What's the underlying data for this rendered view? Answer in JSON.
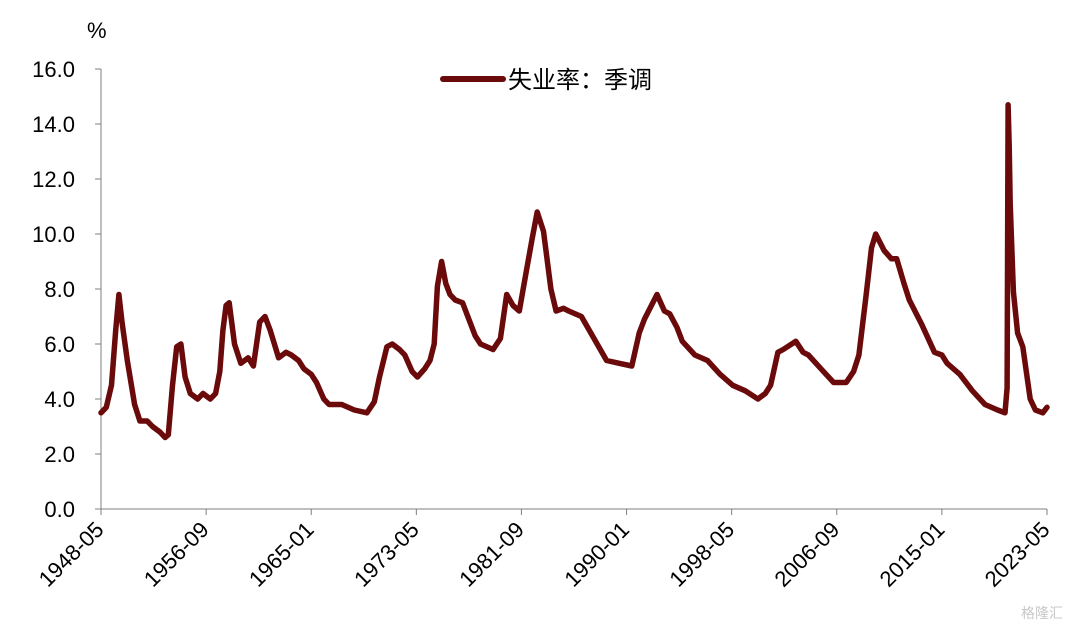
{
  "chart_data": {
    "type": "line",
    "title": "",
    "ylabel": "%",
    "xlabel": "",
    "ylim": [
      0,
      16
    ],
    "yticks": [
      "0.0",
      "2.0",
      "4.0",
      "6.0",
      "8.0",
      "10.0",
      "12.0",
      "14.0",
      "16.0"
    ],
    "xticks": [
      "1948-05",
      "1956-09",
      "1965-01",
      "1973-05",
      "1981-09",
      "1990-01",
      "1998-05",
      "2006-09",
      "2015-01",
      "2023-05"
    ],
    "legend": {
      "position": "top-center"
    },
    "series": [
      {
        "name": "失业率：季调",
        "color": "#6b0a0a",
        "x": [
          "1948-05",
          "1948-10",
          "1949-03",
          "1949-07",
          "1949-10",
          "1950-01",
          "1950-06",
          "1951-01",
          "1951-06",
          "1952-01",
          "1952-06",
          "1953-01",
          "1953-06",
          "1953-09",
          "1954-01",
          "1954-05",
          "1954-09",
          "1955-01",
          "1955-06",
          "1956-01",
          "1956-06",
          "1957-01",
          "1957-06",
          "1957-10",
          "1958-01",
          "1958-04",
          "1958-07",
          "1958-12",
          "1959-06",
          "1960-01",
          "1960-06",
          "1960-12",
          "1961-05",
          "1961-10",
          "1962-06",
          "1963-01",
          "1963-06",
          "1964-01",
          "1964-06",
          "1965-01",
          "1965-06",
          "1966-01",
          "1966-06",
          "1967-06",
          "1968-06",
          "1969-06",
          "1970-01",
          "1970-06",
          "1971-01",
          "1971-06",
          "1972-01",
          "1972-06",
          "1973-01",
          "1973-06",
          "1974-01",
          "1974-06",
          "1974-10",
          "1975-01",
          "1975-05",
          "1975-09",
          "1976-01",
          "1976-06",
          "1977-01",
          "1977-06",
          "1978-01",
          "1978-06",
          "1979-06",
          "1980-01",
          "1980-07",
          "1981-01",
          "1981-07",
          "1982-01",
          "1982-07",
          "1982-12",
          "1983-06",
          "1984-01",
          "1984-06",
          "1985-01",
          "1985-06",
          "1986-06",
          "1987-06",
          "1988-06",
          "1989-06",
          "1990-06",
          "1991-01",
          "1991-06",
          "1992-06",
          "1993-01",
          "1993-06",
          "1994-01",
          "1994-06",
          "1995-06",
          "1996-06",
          "1997-06",
          "1998-06",
          "1999-06",
          "2000-06",
          "2001-01",
          "2001-06",
          "2002-01",
          "2002-06",
          "2003-06",
          "2004-01",
          "2004-06",
          "2005-06",
          "2006-06",
          "2007-06",
          "2008-01",
          "2008-06",
          "2009-01",
          "2009-06",
          "2009-10",
          "2010-06",
          "2011-01",
          "2011-06",
          "2012-01",
          "2012-06",
          "2013-06",
          "2014-06",
          "2015-01",
          "2015-06",
          "2016-06",
          "2017-06",
          "2018-06",
          "2019-06",
          "2020-01",
          "2020-03",
          "2020-04",
          "2020-05",
          "2020-06",
          "2020-09",
          "2021-01",
          "2021-06",
          "2022-01",
          "2022-06",
          "2023-01",
          "2023-05"
        ],
        "values": [
          3.5,
          3.7,
          4.5,
          6.5,
          7.8,
          6.8,
          5.4,
          3.8,
          3.2,
          3.2,
          3.0,
          2.8,
          2.6,
          2.7,
          4.5,
          5.9,
          6.0,
          4.8,
          4.2,
          4.0,
          4.2,
          4.0,
          4.2,
          5.0,
          6.5,
          7.4,
          7.5,
          6.0,
          5.3,
          5.5,
          5.2,
          6.8,
          7.0,
          6.5,
          5.5,
          5.7,
          5.6,
          5.4,
          5.1,
          4.9,
          4.6,
          4.0,
          3.8,
          3.8,
          3.6,
          3.5,
          3.9,
          4.8,
          5.9,
          6.0,
          5.8,
          5.6,
          5.0,
          4.8,
          5.1,
          5.4,
          6.0,
          8.1,
          9.0,
          8.2,
          7.8,
          7.6,
          7.5,
          7.0,
          6.3,
          6.0,
          5.8,
          6.2,
          7.8,
          7.4,
          7.2,
          8.5,
          9.8,
          10.8,
          10.1,
          8.0,
          7.2,
          7.3,
          7.2,
          7.0,
          6.2,
          5.4,
          5.3,
          5.2,
          6.4,
          6.9,
          7.8,
          7.2,
          7.1,
          6.6,
          6.1,
          5.6,
          5.4,
          4.9,
          4.5,
          4.3,
          4.0,
          4.2,
          4.5,
          5.7,
          5.8,
          6.1,
          5.7,
          5.6,
          5.1,
          4.6,
          4.6,
          5.0,
          5.6,
          7.8,
          9.5,
          10.0,
          9.4,
          9.1,
          9.1,
          8.2,
          7.6,
          6.7,
          5.7,
          5.6,
          5.3,
          4.9,
          4.3,
          3.8,
          3.6,
          3.5,
          4.4,
          14.7,
          13.2,
          11.1,
          7.9,
          6.4,
          5.9,
          4.0,
          3.6,
          3.5,
          3.7
        ]
      }
    ]
  },
  "watermark": "格隆汇"
}
